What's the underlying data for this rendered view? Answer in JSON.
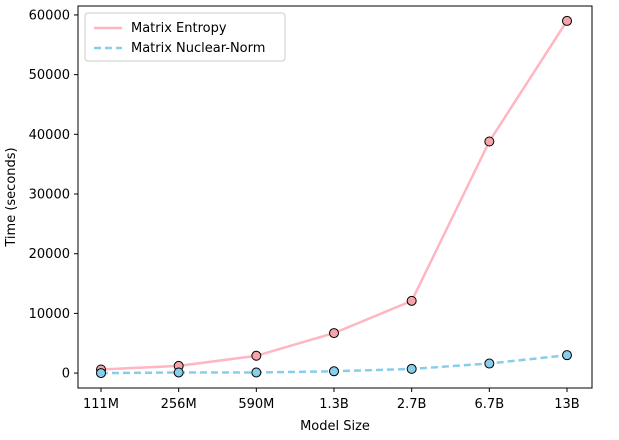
{
  "chart_data": {
    "type": "line",
    "title": "",
    "xlabel": "Model Size",
    "ylabel": "Time (seconds)",
    "categories": [
      "111M",
      "256M",
      "590M",
      "1.3B",
      "2.7B",
      "6.7B",
      "13B"
    ],
    "ylim": [
      -2500,
      61500
    ],
    "yticks": [
      0,
      10000,
      20000,
      30000,
      40000,
      50000,
      60000
    ],
    "grid": false,
    "legend_position": "upper-left",
    "series": [
      {
        "name": "Matrix Entropy",
        "values": [
          600,
          1200,
          2900,
          6700,
          12100,
          38800,
          59000
        ],
        "color": "#ffb6c1",
        "marker_fill": "#f4a4ab",
        "line_style": "solid"
      },
      {
        "name": "Matrix Nuclear-Norm",
        "values": [
          0,
          100,
          100,
          300,
          700,
          1600,
          3000
        ],
        "color": "#87ceeb",
        "marker_fill": "#87ceeb",
        "line_style": "dashed"
      }
    ]
  }
}
